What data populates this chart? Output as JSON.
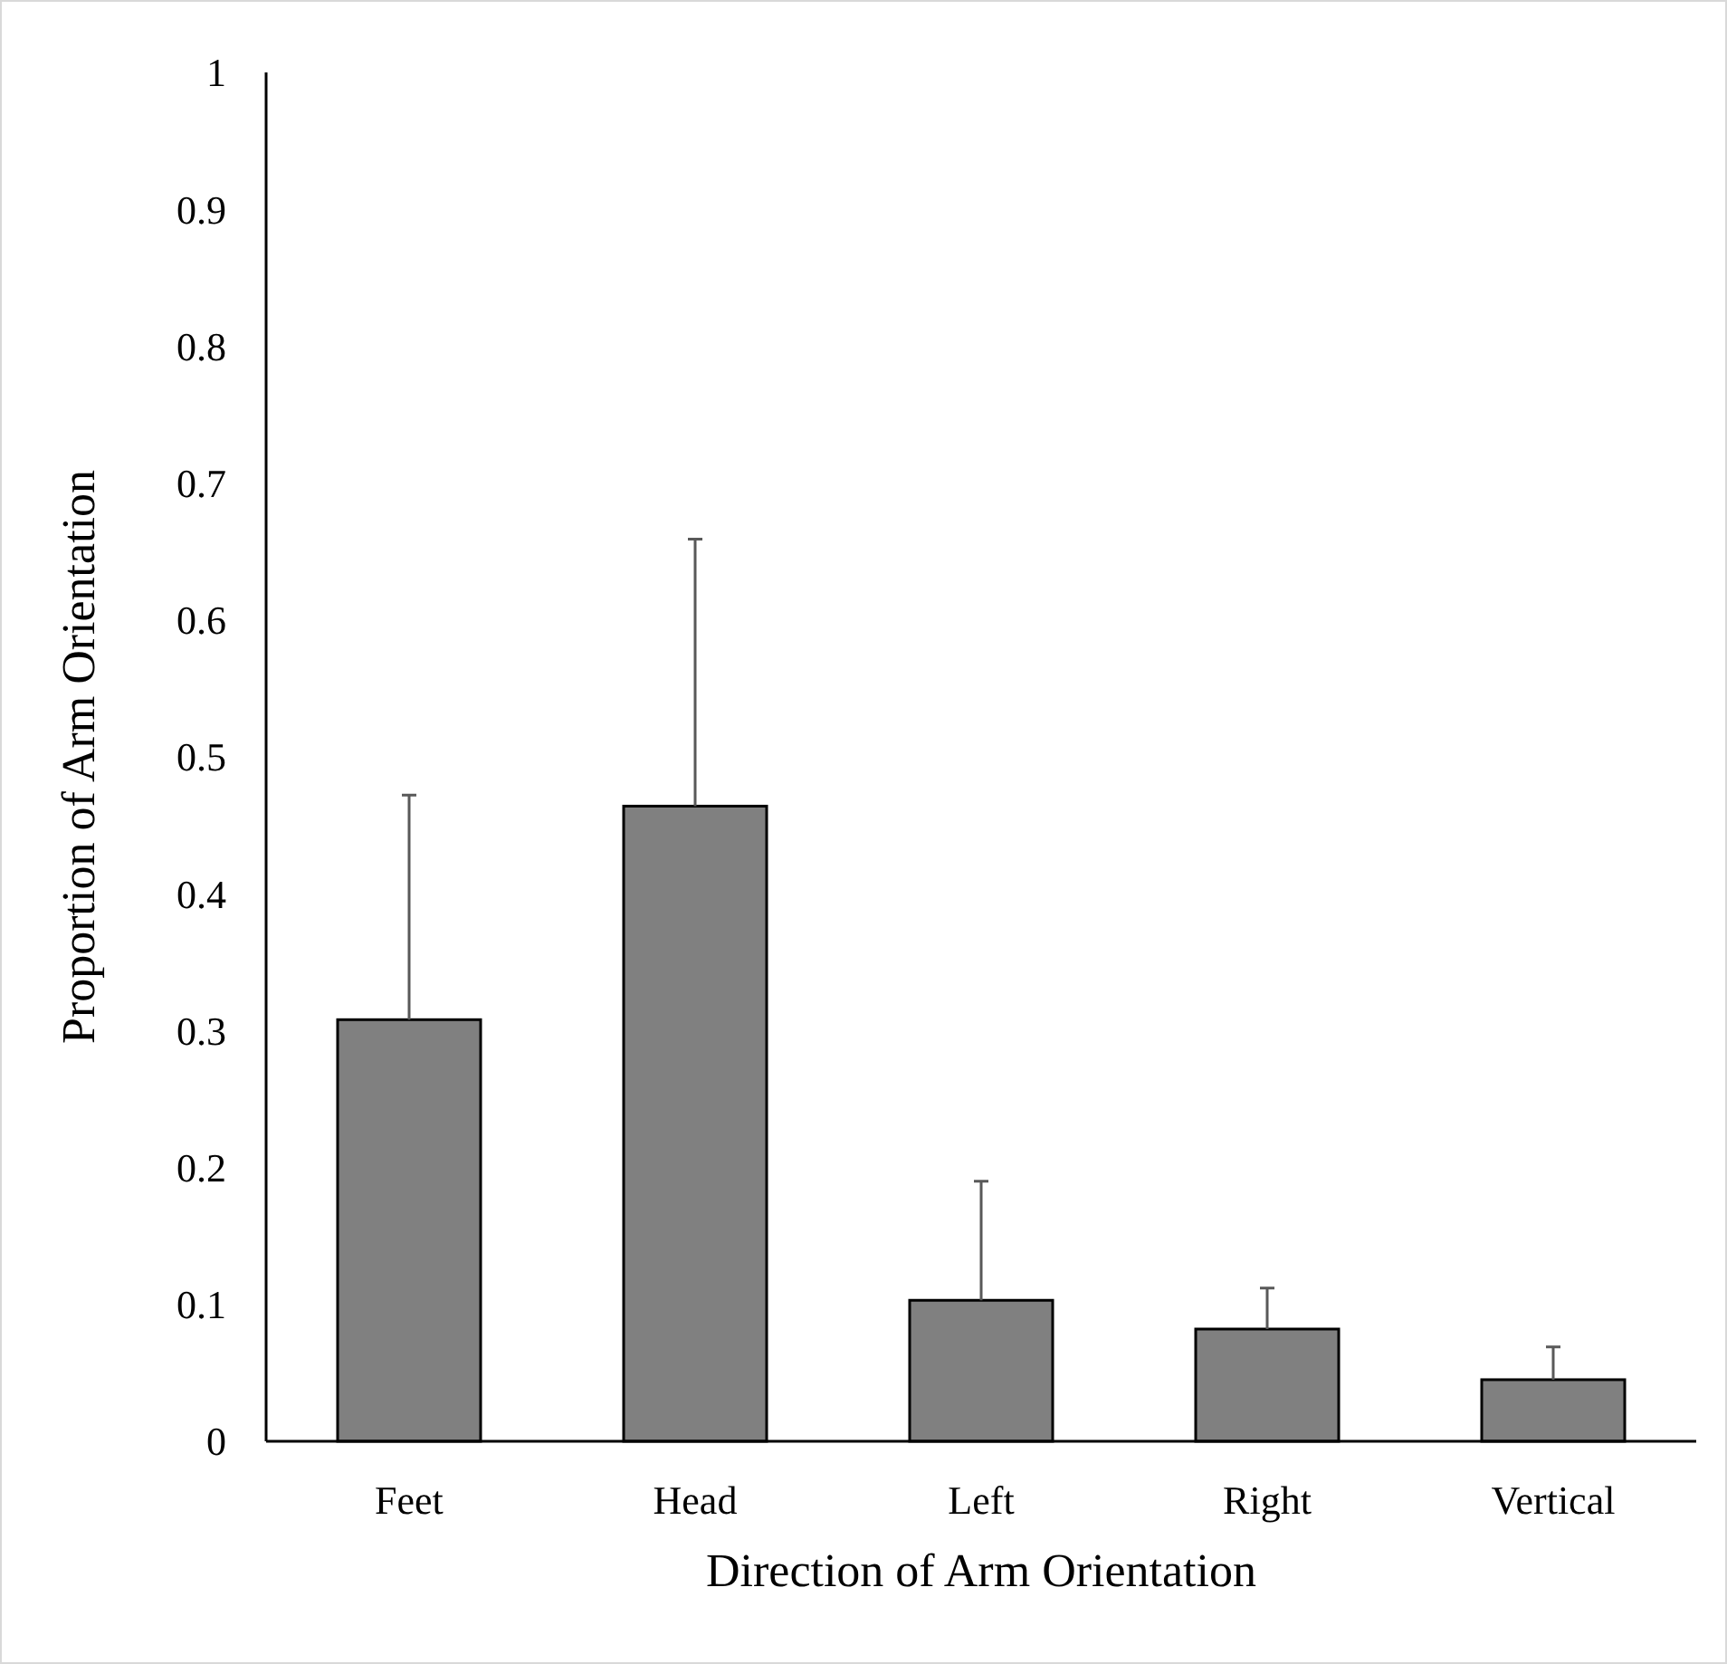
{
  "chart_data": {
    "type": "bar",
    "xlabel": "Direction of Arm Orientation",
    "ylabel": "Proportion of Arm Orientation",
    "categories": [
      "Feet",
      "Head",
      "Left",
      "Right",
      "Vertical"
    ],
    "values": [
      0.308,
      0.464,
      0.103,
      0.082,
      0.045
    ],
    "errors": [
      [
        0.308,
        0.472
      ],
      [
        0.464,
        0.659
      ],
      [
        0.103,
        0.19
      ],
      [
        0.082,
        0.112
      ],
      [
        0.045,
        0.069
      ]
    ],
    "color": "#808080",
    "ylim": [
      0,
      1
    ],
    "yticks": [
      0,
      0.1,
      0.2,
      0.3,
      0.4,
      0.5,
      0.6,
      0.7,
      0.8,
      0.9,
      1
    ],
    "grid": false
  }
}
